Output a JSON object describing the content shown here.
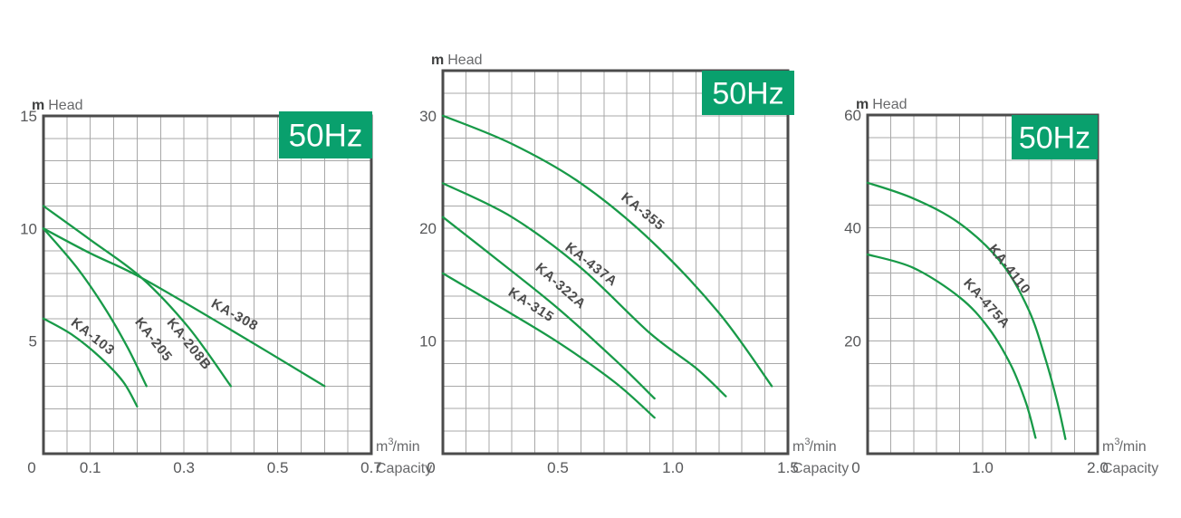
{
  "colors": {
    "background": "#ffffff",
    "curve": "#189a48",
    "badge_bg": "#09a06d",
    "badge_text": "#ffffff",
    "grid": "#a8a8a8",
    "border": "#4b4b4b",
    "tick_text": "#57585a",
    "axis_unit_text": "#3f4040",
    "axis_word_text": "#68696b",
    "curve_label": "#4c4c4c"
  },
  "chart_data": [
    {
      "type": "line",
      "freq_badge": "50Hz",
      "y_axis_label": {
        "unit": "m",
        "word": "Head"
      },
      "x_axis_label": {
        "base": "m",
        "sup": "3",
        "rest": "/min",
        "word": "Capacity"
      },
      "xlim": [
        0,
        0.7
      ],
      "ylim": [
        0,
        15
      ],
      "x_grid_divisions": 14,
      "y_grid_divisions": 15,
      "x_ticks": [
        {
          "value": 0,
          "label": "0"
        },
        {
          "value": 0.1,
          "label": "0.1"
        },
        {
          "value": 0.3,
          "label": "0.3"
        },
        {
          "value": 0.5,
          "label": "0.5"
        },
        {
          "value": 0.7,
          "label": "0.7"
        }
      ],
      "y_ticks": [
        {
          "value": 5,
          "label": "5"
        },
        {
          "value": 10,
          "label": "10"
        },
        {
          "value": 15,
          "label": "15"
        }
      ],
      "series": [
        {
          "name": "KA-103",
          "points": [
            [
              0,
              6
            ],
            [
              0.06,
              5.3
            ],
            [
              0.12,
              4.3
            ],
            [
              0.17,
              3.2
            ],
            [
              0.2,
              2.1
            ]
          ],
          "label": {
            "x": 0.1,
            "y": 5.05,
            "angle": 38
          }
        },
        {
          "name": "KA-205",
          "points": [
            [
              0,
              10
            ],
            [
              0.07,
              8.3
            ],
            [
              0.13,
              6.5
            ],
            [
              0.18,
              4.7
            ],
            [
              0.22,
              3.0
            ]
          ],
          "label": {
            "x": 0.228,
            "y": 4.95,
            "angle": 52
          }
        },
        {
          "name": "KA-208B",
          "points": [
            [
              0,
              11
            ],
            [
              0.1,
              9.5
            ],
            [
              0.21,
              7.8
            ],
            [
              0.31,
              5.6
            ],
            [
              0.4,
              3.0
            ]
          ],
          "label": {
            "x": 0.304,
            "y": 4.75,
            "angle": 51
          }
        },
        {
          "name": "KA-308",
          "points": [
            [
              0,
              10
            ],
            [
              0.1,
              8.9
            ],
            [
              0.21,
              7.8
            ],
            [
              0.4,
              5.5
            ],
            [
              0.6,
              3.0
            ]
          ],
          "label": {
            "x": 0.404,
            "y": 6.0,
            "angle": 29
          }
        }
      ]
    },
    {
      "type": "line",
      "freq_badge": "50Hz",
      "y_axis_label": {
        "unit": "m",
        "word": "Head"
      },
      "x_axis_label": {
        "base": "m",
        "sup": "3",
        "rest": "/min",
        "word": "Capacity"
      },
      "xlim": [
        0,
        1.5
      ],
      "ylim": [
        0,
        34
      ],
      "x_grid_divisions": 15,
      "y_grid_divisions": 17,
      "x_ticks": [
        {
          "value": 0,
          "label": "0"
        },
        {
          "value": 0.5,
          "label": "0.5"
        },
        {
          "value": 1.0,
          "label": "1.0"
        },
        {
          "value": 1.5,
          "label": "1.5"
        }
      ],
      "y_ticks": [
        {
          "value": 10,
          "label": "10"
        },
        {
          "value": 20,
          "label": "20"
        },
        {
          "value": 30,
          "label": "30"
        }
      ],
      "series": [
        {
          "name": "KA-315",
          "points": [
            [
              0,
              16
            ],
            [
              0.25,
              13
            ],
            [
              0.5,
              9.9
            ],
            [
              0.75,
              6.3
            ],
            [
              0.92,
              3.2
            ]
          ],
          "label": {
            "x": 0.374,
            "y": 12.9,
            "angle": 33
          }
        },
        {
          "name": "KA-322A",
          "points": [
            [
              0,
              21
            ],
            [
              0.25,
              17
            ],
            [
              0.5,
              12.9
            ],
            [
              0.75,
              8.3
            ],
            [
              0.92,
              4.9
            ]
          ],
          "label": {
            "x": 0.5,
            "y": 14.6,
            "angle": 41
          }
        },
        {
          "name": "KA-437A",
          "points": [
            [
              0,
              24
            ],
            [
              0.3,
              21
            ],
            [
              0.6,
              16.5
            ],
            [
              0.9,
              10.7
            ],
            [
              1.1,
              7.6
            ],
            [
              1.23,
              5.1
            ]
          ],
          "label": {
            "x": 0.634,
            "y": 16.5,
            "angle": 38
          }
        },
        {
          "name": "KA-355",
          "points": [
            [
              0,
              30
            ],
            [
              0.3,
              27.5
            ],
            [
              0.6,
              24
            ],
            [
              0.9,
              19
            ],
            [
              1.2,
              12.5
            ],
            [
              1.43,
              6.0
            ]
          ],
          "label": {
            "x": 0.858,
            "y": 21.2,
            "angle": 39
          }
        }
      ]
    },
    {
      "type": "line",
      "freq_badge": "50Hz",
      "y_axis_label": {
        "unit": "m",
        "word": "Head"
      },
      "x_axis_label": {
        "base": "m",
        "sup": "3",
        "rest": "/min",
        "word": "Capacity"
      },
      "xlim": [
        0,
        2.0
      ],
      "ylim": [
        0,
        60
      ],
      "x_grid_divisions": 10,
      "y_grid_divisions": 15,
      "x_ticks": [
        {
          "value": 0,
          "label": "0"
        },
        {
          "value": 1.0,
          "label": "1.0"
        },
        {
          "value": 2.0,
          "label": "2.0"
        }
      ],
      "y_ticks": [
        {
          "value": 20,
          "label": "20"
        },
        {
          "value": 40,
          "label": "40"
        },
        {
          "value": 60,
          "label": "60"
        }
      ],
      "series": [
        {
          "name": "KA-475A",
          "points": [
            [
              0,
              35.3
            ],
            [
              0.4,
              32.9
            ],
            [
              0.8,
              27.7
            ],
            [
              1.05,
              22.3
            ],
            [
              1.25,
              15.5
            ],
            [
              1.38,
              8.8
            ],
            [
              1.46,
              2.8
            ]
          ],
          "label": {
            "x": 1.008,
            "y": 26.1,
            "angle": 48
          }
        },
        {
          "name": "KA-4110",
          "points": [
            [
              0,
              48
            ],
            [
              0.4,
              45.2
            ],
            [
              0.8,
              40.8
            ],
            [
              1.16,
              33.9
            ],
            [
              1.4,
              25.5
            ],
            [
              1.55,
              16.5
            ],
            [
              1.65,
              9
            ],
            [
              1.72,
              2.6
            ]
          ],
          "label": {
            "x": 1.205,
            "y": 32.2,
            "angle": 52
          }
        }
      ]
    }
  ]
}
